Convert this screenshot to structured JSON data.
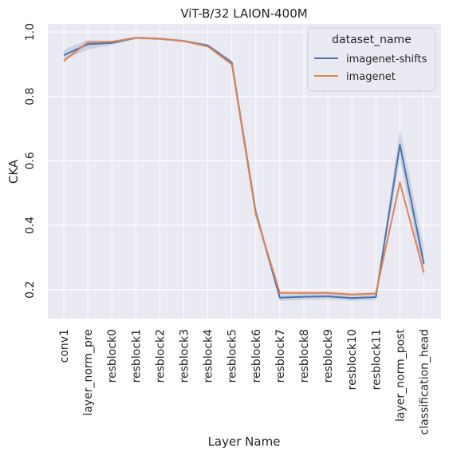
{
  "chart_data": {
    "type": "line",
    "title": "ViT-B/32  LAION-400M",
    "xlabel": "Layer Name",
    "ylabel": "CKA",
    "ylim": [
      0.11,
      1.025
    ],
    "yticks": [
      0.2,
      0.4,
      0.6,
      0.8,
      1.0
    ],
    "ytick_labels": [
      "0.2",
      "0.4",
      "0.6",
      "0.8",
      "1.0"
    ],
    "grid": true,
    "categories": [
      "conv1",
      "layer_norm_pre",
      "resblock0",
      "resblock1",
      "resblock2",
      "resblock3",
      "resblock4",
      "resblock5",
      "resblock6",
      "resblock7",
      "resblock8",
      "resblock9",
      "resblock10",
      "resblock11",
      "layer_norm_post",
      "classification_head"
    ],
    "legend": {
      "title": "dataset_name",
      "placement": "top-right"
    },
    "series": [
      {
        "name": "imagenet-shifts",
        "color": "#4c72b0",
        "values": [
          0.928,
          0.962,
          0.966,
          0.982,
          0.979,
          0.972,
          0.958,
          0.905,
          0.44,
          0.175,
          0.178,
          0.179,
          0.174,
          0.177,
          0.65,
          0.28
        ],
        "ci_lower": [
          0.915,
          0.945,
          0.96,
          0.978,
          0.975,
          0.968,
          0.953,
          0.895,
          0.425,
          0.165,
          0.168,
          0.17,
          0.165,
          0.168,
          0.605,
          0.232
        ],
        "ci_upper": [
          0.945,
          0.975,
          0.972,
          0.986,
          0.983,
          0.976,
          0.963,
          0.913,
          0.452,
          0.185,
          0.188,
          0.189,
          0.183,
          0.187,
          0.698,
          0.332
        ]
      },
      {
        "name": "imagenet",
        "color": "#dd8452",
        "values": [
          0.91,
          0.968,
          0.97,
          0.982,
          0.979,
          0.972,
          0.955,
          0.9,
          0.433,
          0.19,
          0.19,
          0.19,
          0.185,
          0.188,
          0.533,
          0.253
        ],
        "ci_lower": [
          0.905,
          0.965,
          0.967,
          0.98,
          0.977,
          0.969,
          0.952,
          0.896,
          0.428,
          0.186,
          0.186,
          0.186,
          0.181,
          0.184,
          0.527,
          0.247
        ],
        "ci_upper": [
          0.915,
          0.971,
          0.973,
          0.984,
          0.981,
          0.975,
          0.958,
          0.904,
          0.438,
          0.194,
          0.194,
          0.194,
          0.189,
          0.192,
          0.539,
          0.259
        ]
      }
    ]
  }
}
